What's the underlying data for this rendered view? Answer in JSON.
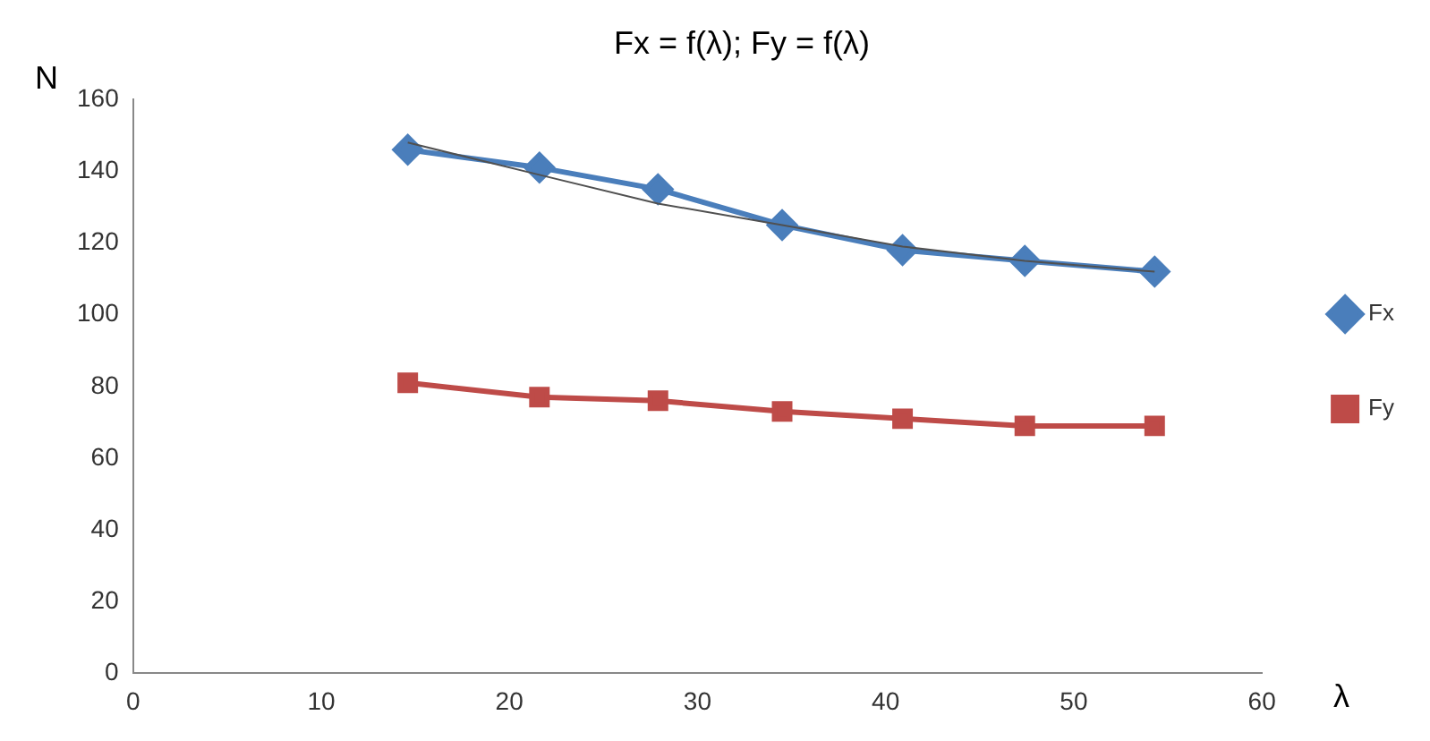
{
  "chart_data": {
    "type": "line",
    "title": "Fx = f(λ); Fy = f(λ)",
    "xlabel": "λ",
    "ylabel": "N",
    "x": [
      14.6,
      21.6,
      27.9,
      34.5,
      40.9,
      47.4,
      54.3
    ],
    "series": [
      {
        "name": "Fx",
        "color": "#4a7ebb",
        "marker": "diamond",
        "values": [
          146,
          141,
          135,
          125,
          118,
          115,
          112
        ]
      },
      {
        "name": "Fy",
        "color": "#be4b48",
        "marker": "square",
        "values": [
          81,
          77,
          76,
          73,
          71,
          69,
          69
        ]
      },
      {
        "type": "line",
        "color": "#505050",
        "marker": "none",
        "x": [
          14.6,
          21.6,
          27.9,
          34.5,
          40.9,
          47.4,
          54.3
        ],
        "values": [
          148,
          139,
          131,
          125,
          119,
          115,
          112
        ]
      }
    ],
    "xlim": [
      0,
      60
    ],
    "xticks": [
      0,
      10,
      20,
      30,
      40,
      50,
      60
    ],
    "ylim": [
      0,
      160
    ],
    "yticks": [
      0,
      20,
      40,
      60,
      80,
      100,
      120,
      140,
      160
    ],
    "grid": false,
    "legend": "right"
  }
}
